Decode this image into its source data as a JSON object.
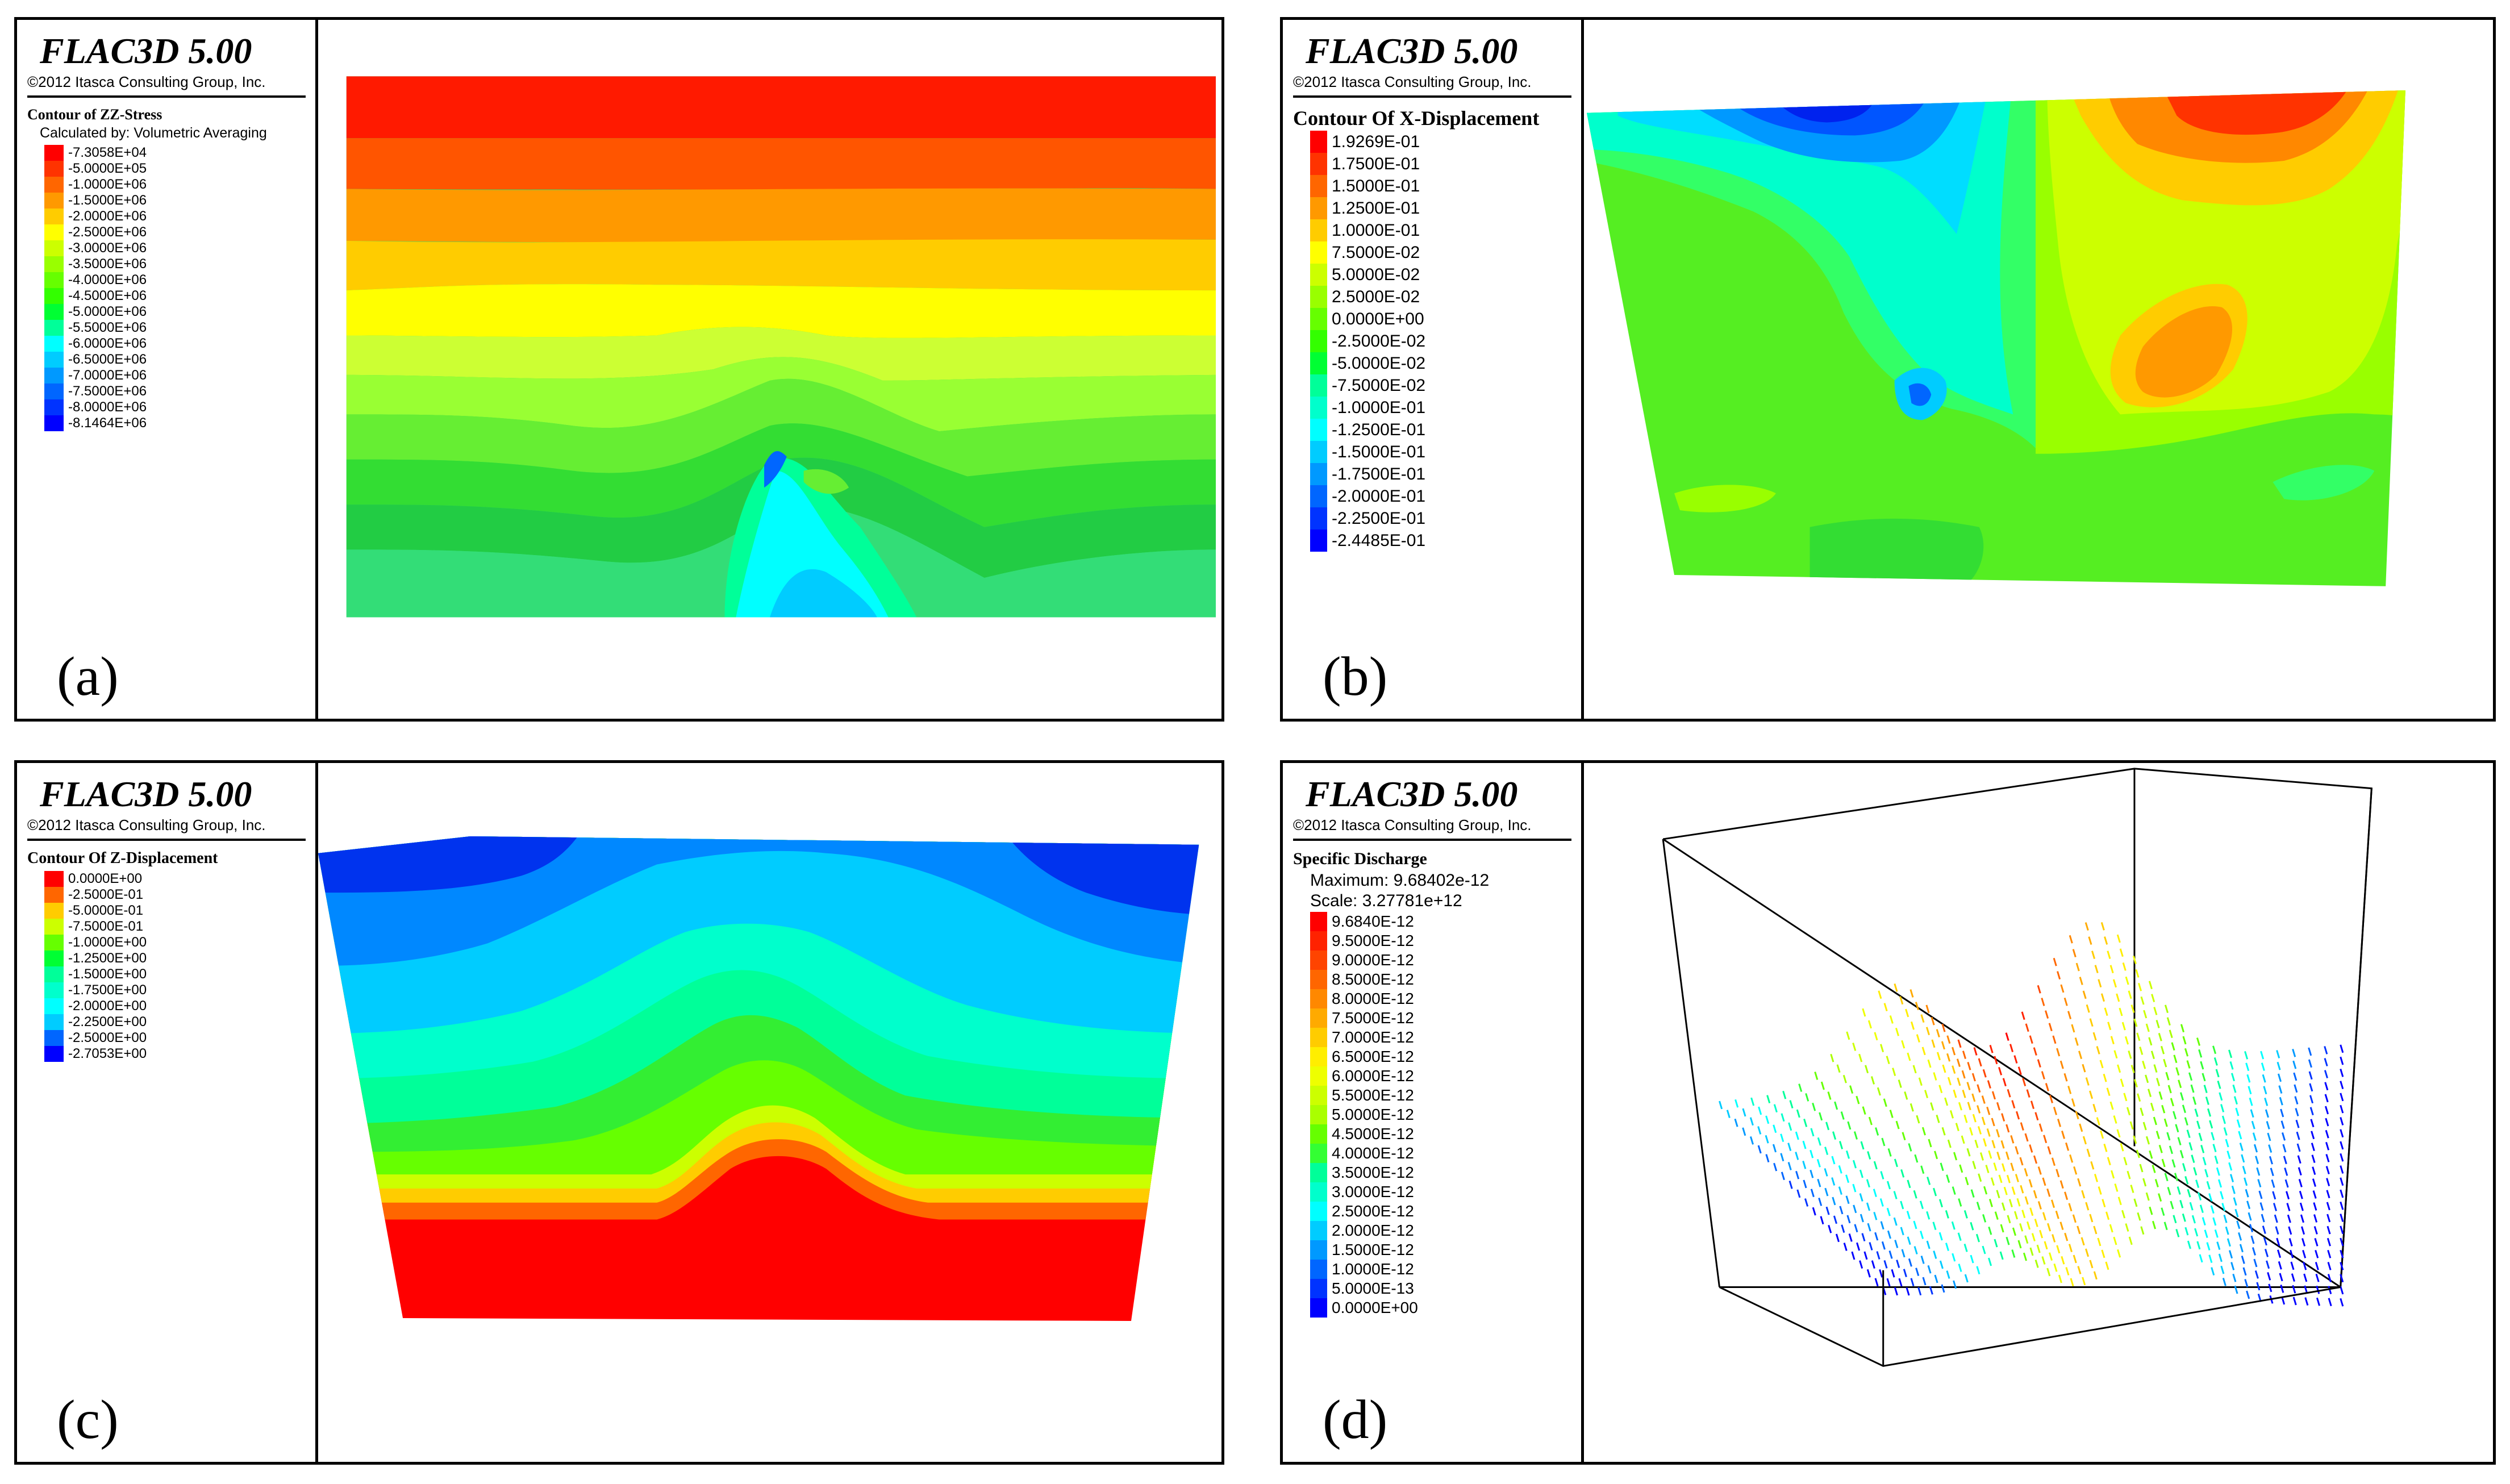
{
  "panels": [
    {
      "id": "a",
      "app_title": "FLAC3D 5.00",
      "copyright": "©2012 Itasca Consulting Group, Inc.",
      "legend_title": "Contour of ZZ-Stress",
      "legend_sub": [
        "Calculated by: Volumetric Averaging"
      ],
      "levels": [
        "-7.3058E+04",
        "-5.0000E+05",
        "-1.0000E+06",
        "-1.5000E+06",
        "-2.0000E+06",
        "-2.5000E+06",
        "-3.0000E+06",
        "-3.5000E+06",
        "-4.0000E+06",
        "-4.5000E+06",
        "-5.0000E+06",
        "-5.5000E+06",
        "-6.0000E+06",
        "-6.5000E+06",
        "-7.0000E+06",
        "-7.5000E+06",
        "-8.0000E+06",
        "-8.1464E+06"
      ],
      "colors": [
        "#ff0000",
        "#ff3300",
        "#ff6600",
        "#ff9900",
        "#ffcc00",
        "#ffff00",
        "#ccff00",
        "#99ff00",
        "#66ff00",
        "#33ff00",
        "#00ff33",
        "#00ff99",
        "#00ffff",
        "#00ccff",
        "#0099ff",
        "#0066ff",
        "#0033ff",
        "#0000ff"
      ],
      "panel_label": "(a)"
    },
    {
      "id": "b",
      "app_title": "FLAC3D 5.00",
      "copyright": "©2012 Itasca Consulting Group, Inc.",
      "legend_title": "Contour Of X-Displacement",
      "legend_sub": [],
      "levels": [
        "1.9269E-01",
        "1.7500E-01",
        "1.5000E-01",
        "1.2500E-01",
        "1.0000E-01",
        "7.5000E-02",
        "5.0000E-02",
        "2.5000E-02",
        "0.0000E+00",
        "-2.5000E-02",
        "-5.0000E-02",
        "-7.5000E-02",
        "-1.0000E-01",
        "-1.2500E-01",
        "-1.5000E-01",
        "-1.7500E-01",
        "-2.0000E-01",
        "-2.2500E-01",
        "-2.4485E-01"
      ],
      "colors": [
        "#ff0000",
        "#ff3300",
        "#ff6600",
        "#ff9900",
        "#ffcc00",
        "#ffff00",
        "#ccff00",
        "#99ff00",
        "#66ff00",
        "#33ff00",
        "#00ff33",
        "#00ff99",
        "#00ffcc",
        "#00ffff",
        "#00ccff",
        "#0099ff",
        "#0066ff",
        "#0033ff",
        "#0000ff"
      ],
      "panel_label": "(b)"
    },
    {
      "id": "c",
      "app_title": "FLAC3D 5.00",
      "copyright": "©2012 Itasca Consulting Group, Inc.",
      "legend_title": "Contour Of Z-Displacement",
      "legend_sub": [],
      "levels": [
        "0.0000E+00",
        "-2.5000E-01",
        "-5.0000E-01",
        "-7.5000E-01",
        "-1.0000E+00",
        "-1.2500E+00",
        "-1.5000E+00",
        "-1.7500E+00",
        "-2.0000E+00",
        "-2.2500E+00",
        "-2.5000E+00",
        "-2.7053E+00"
      ],
      "colors": [
        "#ff0000",
        "#ff6600",
        "#ffcc00",
        "#ccff00",
        "#66ff00",
        "#00ff33",
        "#00ff99",
        "#00ffcc",
        "#00ffff",
        "#00ccff",
        "#0066ff",
        "#0000ff"
      ],
      "panel_label": "(c)"
    },
    {
      "id": "d",
      "app_title": "FLAC3D 5.00",
      "copyright": "©2012 Itasca Consulting Group, Inc.",
      "legend_title": "Specific Discharge",
      "legend_sub": [
        "Maximum: 9.68402e-12",
        "Scale: 3.27781e+12"
      ],
      "levels": [
        "9.6840E-12",
        "9.5000E-12",
        "9.0000E-12",
        "8.5000E-12",
        "8.0000E-12",
        "7.5000E-12",
        "7.0000E-12",
        "6.5000E-12",
        "6.0000E-12",
        "5.5000E-12",
        "5.0000E-12",
        "4.5000E-12",
        "4.0000E-12",
        "3.5000E-12",
        "3.0000E-12",
        "2.5000E-12",
        "2.0000E-12",
        "1.5000E-12",
        "1.0000E-12",
        "5.0000E-13",
        "0.0000E+00"
      ],
      "colors": [
        "#ff0000",
        "#ff2200",
        "#ff4400",
        "#ff6600",
        "#ff8800",
        "#ffaa00",
        "#ffcc00",
        "#ffee00",
        "#eeff00",
        "#ccff00",
        "#aaff00",
        "#66ff00",
        "#33ff33",
        "#00ff99",
        "#00ffcc",
        "#00ffff",
        "#00ccff",
        "#0099ff",
        "#0066ff",
        "#0033ff",
        "#0000ff"
      ],
      "panel_label": "(d)"
    }
  ],
  "plots": {
    "a": {
      "type": "ZZ-stress contour field (layered, with a central uplift)"
    },
    "b": {
      "type": "X-displacement contour field"
    },
    "c": {
      "type": "Z-displacement contour field"
    },
    "d": {
      "type": "Specific discharge vector field inside wireframe box"
    }
  }
}
